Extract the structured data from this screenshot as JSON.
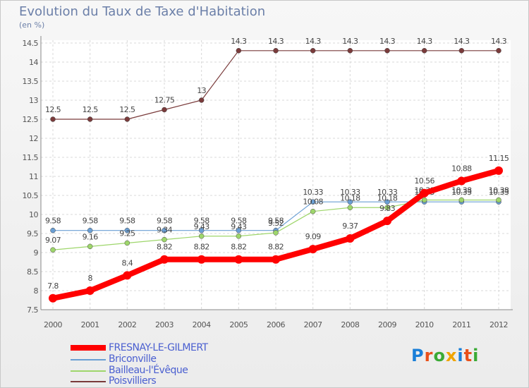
{
  "title": "Evolution du Taux de Taxe d'Habitation",
  "subtitle": "(en %)",
  "logo": {
    "letters": [
      "P",
      "r",
      "o",
      "x",
      "i",
      "t",
      "i"
    ],
    "colors": [
      "#1a7fd8",
      "#e8501a",
      "#3aaa35",
      "#f0a400",
      "#1a7fd8",
      "#e8501a",
      "#3aaa35"
    ]
  },
  "chart_data": {
    "type": "line",
    "title": "Evolution du Taux de Taxe d'Habitation",
    "ylabel": "(en %)",
    "xlabel": "",
    "ylim": [
      7.5,
      14.5
    ],
    "yticks": [
      "7.5",
      "8",
      "8.5",
      "9",
      "9.5",
      "10",
      "10.5",
      "11",
      "11.5",
      "12",
      "12.5",
      "13",
      "13.5",
      "14",
      "14.5"
    ],
    "categories": [
      "2000",
      "2001",
      "2002",
      "2003",
      "2004",
      "2005",
      "2006",
      "2007",
      "2008",
      "2009",
      "2010",
      "2011",
      "2012"
    ],
    "grid": true,
    "legend_position": "bottom-left",
    "series": [
      {
        "name": "Poisvilliers",
        "color": "#7a3b3b",
        "values": [
          12.5,
          12.5,
          12.5,
          12.75,
          13,
          14.3,
          14.3,
          14.3,
          14.3,
          14.3,
          14.3,
          14.3,
          14.3
        ],
        "labels": [
          "12.5",
          "12.5",
          "12.5",
          "12.75",
          "13",
          "14.3",
          "14.3",
          "14.3",
          "14.3",
          "14.3",
          "14.3",
          "14.3",
          "14.3"
        ]
      },
      {
        "name": "Briconville",
        "color": "#6a9fd4",
        "values": [
          9.58,
          9.58,
          9.58,
          9.58,
          9.58,
          9.58,
          9.58,
          10.33,
          10.33,
          10.33,
          10.33,
          10.33,
          10.33
        ],
        "labels": [
          "9.58",
          "9.58",
          "9.58",
          "9.58",
          "9.58",
          "9.58",
          "9.58",
          "10.33",
          "10.33",
          "10.33",
          "10.33",
          "10.33",
          "10.33"
        ]
      },
      {
        "name": "Bailleau-l'Évêque",
        "color": "#9ed66b",
        "values": [
          9.07,
          9.16,
          9.25,
          9.34,
          9.43,
          9.43,
          9.52,
          10.08,
          10.18,
          10.18,
          10.38,
          10.38,
          10.38
        ],
        "labels": [
          "9.07",
          "9.16",
          "9.25",
          "9.34",
          "9.43",
          "9.43",
          "9.52",
          "10.08",
          "10.18",
          "10.18",
          "10.38",
          "10.38",
          "10.38"
        ]
      },
      {
        "name": "FRESNAY-LE-GILMERT",
        "color": "#ff0000",
        "values": [
          7.8,
          8,
          8.4,
          8.82,
          8.82,
          8.82,
          8.82,
          9.09,
          9.37,
          9.83,
          10.56,
          10.88,
          11.15
        ],
        "labels": [
          "7.8",
          "8",
          "8.4",
          "8.82",
          "8.82",
          "8.82",
          "8.82",
          "9.09",
          "9.37",
          "9.83",
          "10.56",
          "10.88",
          "11.15"
        ]
      }
    ],
    "legend": [
      {
        "name": "FRESNAY-LE-GILMERT",
        "color": "#ff0000"
      },
      {
        "name": "Briconville",
        "color": "#6a9fd4"
      },
      {
        "name": "Bailleau-l'Évêque",
        "color": "#9ed66b"
      },
      {
        "name": "Poisvilliers",
        "color": "#7a3b3b"
      }
    ]
  }
}
